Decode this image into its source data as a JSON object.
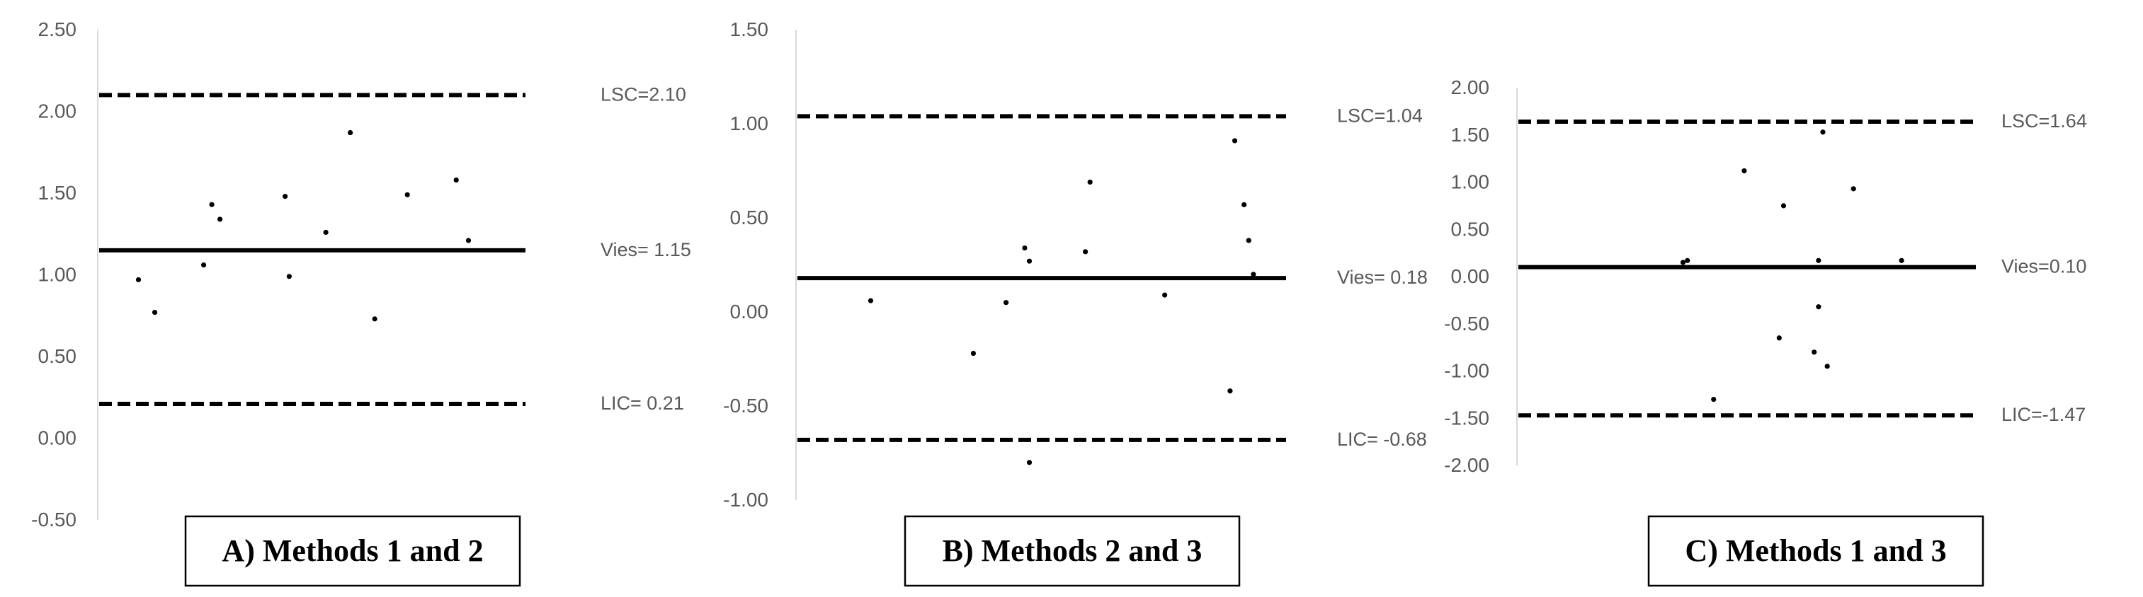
{
  "chart_data": [
    {
      "type": "scatter",
      "caption": "A) Methods 1 and 2",
      "ylim": [
        -0.5,
        2.5
      ],
      "yticks": [
        "-0.50",
        "0.00",
        "0.50",
        "1.00",
        "1.50",
        "2.00",
        "2.50"
      ],
      "grid": false,
      "reference_lines": [
        {
          "name": "LSC",
          "label": "LSC=2.10",
          "value": 2.1,
          "style": "dashed"
        },
        {
          "name": "Vies",
          "label": "Vies= 1.15",
          "value": 1.15,
          "style": "solid"
        },
        {
          "name": "LIC",
          "label": "LIC= 0.21",
          "value": 0.21,
          "style": "dashed"
        }
      ],
      "points": [
        {
          "x": 1.0,
          "y": 0.97
        },
        {
          "x": 1.4,
          "y": 0.77
        },
        {
          "x": 2.6,
          "y": 1.06
        },
        {
          "x": 2.8,
          "y": 1.43
        },
        {
          "x": 3.0,
          "y": 1.34
        },
        {
          "x": 4.6,
          "y": 1.48
        },
        {
          "x": 4.7,
          "y": 0.99
        },
        {
          "x": 5.6,
          "y": 1.26
        },
        {
          "x": 6.2,
          "y": 1.87
        },
        {
          "x": 6.8,
          "y": 0.73
        },
        {
          "x": 7.6,
          "y": 1.49
        },
        {
          "x": 8.8,
          "y": 1.58
        },
        {
          "x": 9.1,
          "y": 1.21
        }
      ]
    },
    {
      "type": "scatter",
      "caption": "B) Methods 2 and 3",
      "ylim": [
        -1.0,
        1.5
      ],
      "yticks": [
        "-1.00",
        "-0.50",
        "0.00",
        "0.50",
        "1.00",
        "1.50"
      ],
      "grid": false,
      "reference_lines": [
        {
          "name": "LSC",
          "label": "LSC=1.04",
          "value": 1.04,
          "style": "dashed"
        },
        {
          "name": "Vies",
          "label": "Vies= 0.18",
          "value": 0.18,
          "style": "solid"
        },
        {
          "name": "LIC",
          "label": "LIC= -0.68",
          "value": -0.68,
          "style": "dashed"
        }
      ],
      "points": [
        {
          "x": 1.6,
          "y": 0.06
        },
        {
          "x": 3.8,
          "y": -0.22
        },
        {
          "x": 4.5,
          "y": 0.05
        },
        {
          "x": 4.9,
          "y": 0.34
        },
        {
          "x": 5.0,
          "y": 0.27
        },
        {
          "x": 5.0,
          "y": -0.8
        },
        {
          "x": 6.2,
          "y": 0.32
        },
        {
          "x": 6.3,
          "y": 0.69
        },
        {
          "x": 7.9,
          "y": 0.09
        },
        {
          "x": 9.3,
          "y": -0.42
        },
        {
          "x": 9.4,
          "y": 0.91
        },
        {
          "x": 9.6,
          "y": 0.57
        },
        {
          "x": 9.7,
          "y": 0.38
        },
        {
          "x": 9.8,
          "y": 0.2
        }
      ]
    },
    {
      "type": "scatter",
      "caption": "C) Methods 1 and 3",
      "ylim": [
        -2.0,
        2.0
      ],
      "yticks": [
        "-2.00",
        "-1.50",
        "-1.00",
        "-0.50",
        "0.00",
        "0.50",
        "1.00",
        "1.50",
        "2.00"
      ],
      "grid": false,
      "reference_lines": [
        {
          "name": "LSC",
          "label": "LSC=1.64",
          "value": 1.64,
          "style": "dashed"
        },
        {
          "name": "Vies",
          "label": "Vies=0.10",
          "value": 0.1,
          "style": "solid"
        },
        {
          "name": "LIC",
          "label": "LIC=-1.47",
          "value": -1.47,
          "style": "dashed"
        }
      ],
      "points": [
        {
          "x": 3.8,
          "y": 0.15
        },
        {
          "x": 3.9,
          "y": 0.17
        },
        {
          "x": 4.5,
          "y": -1.3
        },
        {
          "x": 5.2,
          "y": 1.12
        },
        {
          "x": 6.0,
          "y": -0.65
        },
        {
          "x": 6.1,
          "y": 0.75
        },
        {
          "x": 6.8,
          "y": -0.8
        },
        {
          "x": 6.9,
          "y": 0.17
        },
        {
          "x": 6.9,
          "y": -0.32
        },
        {
          "x": 7.0,
          "y": 1.53
        },
        {
          "x": 7.1,
          "y": -0.95
        },
        {
          "x": 7.7,
          "y": 0.93
        },
        {
          "x": 8.8,
          "y": 0.17
        }
      ]
    }
  ]
}
